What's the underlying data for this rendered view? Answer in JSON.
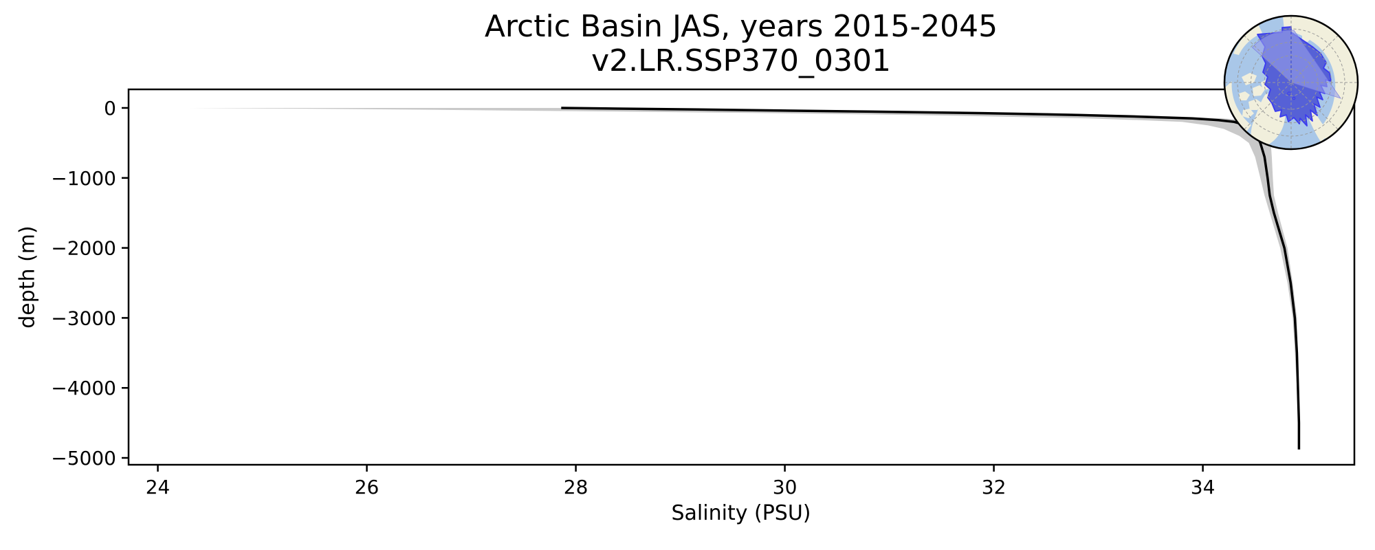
{
  "figure": {
    "title_line1": "Arctic Basin JAS, years 2015-2045",
    "title_line2": "v2.LR.SSP370_0301",
    "xlabel": "Salinity (PSU)",
    "ylabel": "depth (m)"
  },
  "chart_data": {
    "type": "line",
    "title": "Arctic Basin JAS, years 2015-2045",
    "subtitle": "v2.LR.SSP370_0301",
    "xlabel": "Salinity (PSU)",
    "ylabel": "depth (m)",
    "xlim": [
      23.72,
      35.45
    ],
    "ylim": [
      -5098,
      265
    ],
    "xticks": [
      24,
      26,
      28,
      30,
      32,
      34
    ],
    "xtick_labels": [
      "24",
      "26",
      "28",
      "30",
      "32",
      "34"
    ],
    "yticks": [
      0,
      -1000,
      -2000,
      -3000,
      -4000,
      -5000
    ],
    "ytick_labels": [
      "0",
      "−1000",
      "−2000",
      "−3000",
      "−4000",
      "−5000"
    ],
    "grid": false,
    "legend": null,
    "line_color": "#000000",
    "line_width": 3.5,
    "band_color": "#c9c9c9",
    "axis_color": "#000000",
    "depths_m": [
      0,
      -10,
      -25,
      -50,
      -75,
      -100,
      -125,
      -150,
      -175,
      -200,
      -250,
      -300,
      -400,
      -500,
      -700,
      -1000,
      -1250,
      -1500,
      -2000,
      -2500,
      -3000,
      -3500,
      -4000,
      -4500,
      -4880
    ],
    "series": [
      {
        "name": "mean salinity profile",
        "values": [
          27.86,
          28.4,
          29.3,
          30.7,
          31.9,
          32.8,
          33.4,
          33.9,
          34.15,
          34.3,
          34.42,
          34.47,
          34.52,
          34.55,
          34.59,
          34.62,
          34.64,
          34.68,
          34.78,
          34.84,
          34.88,
          34.9,
          34.91,
          34.92,
          34.92
        ]
      },
      {
        "name": "interannual envelope min",
        "values": [
          24.3,
          25.3,
          26.5,
          28.3,
          29.9,
          31.2,
          32.1,
          32.9,
          33.4,
          33.8,
          34.05,
          34.2,
          34.35,
          34.44,
          34.5,
          34.55,
          34.59,
          34.64,
          34.74,
          34.81,
          34.86,
          34.88,
          34.9,
          34.91,
          34.91
        ]
      },
      {
        "name": "interannual envelope max",
        "values": [
          28.4,
          28.9,
          29.9,
          31.4,
          32.5,
          33.3,
          33.8,
          34.2,
          34.4,
          34.5,
          34.58,
          34.62,
          34.64,
          34.65,
          34.66,
          34.67,
          34.68,
          34.72,
          34.81,
          34.86,
          34.9,
          34.91,
          34.92,
          34.93,
          34.93
        ]
      }
    ]
  },
  "inset_map": {
    "description": "polar stereographic map of Arctic with basin region highlighted",
    "colors": {
      "ocean": "#a9c7e8",
      "land": "#f1efdc",
      "basin_fill": "#5661d6",
      "basin_outline": "#3a3af0",
      "sector_fill": "#9aa0e8",
      "graticule": "#999999",
      "meridian": "#4553cc",
      "border": "#000000"
    }
  }
}
